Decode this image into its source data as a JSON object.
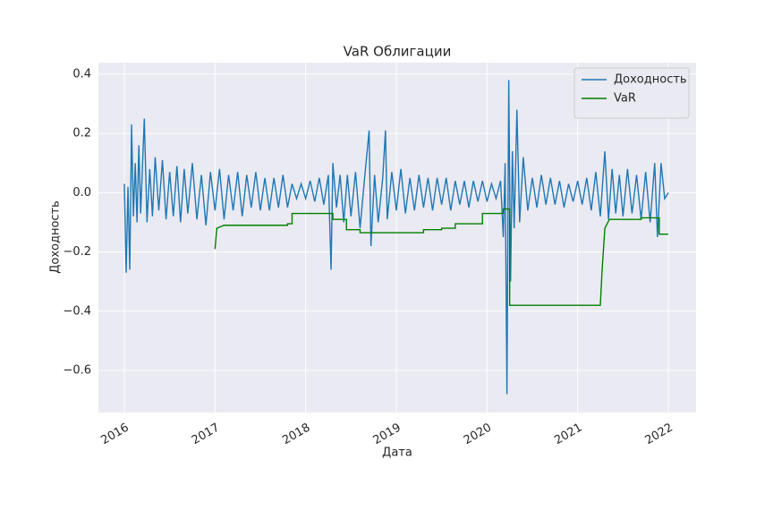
{
  "chart_data": {
    "type": "line",
    "title": "VaR Облигации",
    "xlabel": "Дата",
    "ylabel": "Доходность",
    "xlim": [
      2015.714,
      2022.306
    ],
    "xticks": [
      2016,
      2017,
      2018,
      2019,
      2020,
      2021,
      2022
    ],
    "ylim": [
      -0.742,
      0.439
    ],
    "yticks": [
      {
        "value": -0.6,
        "label": "−0.6"
      },
      {
        "value": -0.4,
        "label": "−0.4"
      },
      {
        "value": -0.2,
        "label": "−0.2"
      },
      {
        "value": 0,
        "label": "0.0"
      },
      {
        "value": 0.2,
        "label": "0.2"
      },
      {
        "value": 0.4,
        "label": "0.4"
      }
    ],
    "grid": true,
    "legend": "upper right",
    "series": [
      {
        "name": "Доходность",
        "color": "#1f77b4",
        "x": [
          2016.0,
          2016.02,
          2016.04,
          2016.06,
          2016.08,
          2016.1,
          2016.12,
          2016.14,
          2016.16,
          2016.18,
          2016.22,
          2016.25,
          2016.28,
          2016.31,
          2016.34,
          2016.38,
          2016.42,
          2016.46,
          2016.5,
          2016.54,
          2016.58,
          2016.62,
          2016.66,
          2016.7,
          2016.75,
          2016.8,
          2016.85,
          2016.9,
          2016.95,
          2017.0,
          2017.05,
          2017.1,
          2017.15,
          2017.2,
          2017.25,
          2017.3,
          2017.35,
          2017.4,
          2017.45,
          2017.5,
          2017.55,
          2017.6,
          2017.65,
          2017.7,
          2017.75,
          2017.8,
          2017.85,
          2017.9,
          2017.95,
          2018.0,
          2018.05,
          2018.1,
          2018.15,
          2018.2,
          2018.25,
          2018.28,
          2018.3,
          2018.34,
          2018.38,
          2018.42,
          2018.46,
          2018.5,
          2018.55,
          2018.6,
          2018.65,
          2018.7,
          2018.72,
          2018.76,
          2018.8,
          2018.85,
          2018.88,
          2018.9,
          2018.95,
          2019.0,
          2019.05,
          2019.1,
          2019.15,
          2019.2,
          2019.25,
          2019.3,
          2019.35,
          2019.4,
          2019.45,
          2019.5,
          2019.55,
          2019.6,
          2019.65,
          2019.7,
          2019.75,
          2019.8,
          2019.85,
          2019.9,
          2019.95,
          2020.0,
          2020.05,
          2020.1,
          2020.15,
          2020.18,
          2020.2,
          2020.22,
          2020.24,
          2020.26,
          2020.28,
          2020.3,
          2020.33,
          2020.36,
          2020.4,
          2020.45,
          2020.5,
          2020.55,
          2020.6,
          2020.65,
          2020.7,
          2020.75,
          2020.8,
          2020.85,
          2020.9,
          2020.95,
          2021.0,
          2021.05,
          2021.1,
          2021.15,
          2021.2,
          2021.25,
          2021.3,
          2021.34,
          2021.38,
          2021.42,
          2021.46,
          2021.5,
          2021.55,
          2021.6,
          2021.65,
          2021.7,
          2021.75,
          2021.8,
          2021.85,
          2021.88,
          2021.92,
          2021.96,
          2022.0
        ],
        "values": [
          0.03,
          -0.27,
          0.02,
          -0.26,
          0.23,
          -0.08,
          0.1,
          -0.1,
          0.16,
          -0.07,
          0.25,
          -0.1,
          0.08,
          -0.08,
          0.12,
          -0.06,
          0.11,
          -0.09,
          0.07,
          -0.08,
          0.09,
          -0.1,
          0.08,
          -0.07,
          0.1,
          -0.09,
          0.06,
          -0.11,
          0.07,
          -0.06,
          0.08,
          -0.09,
          0.06,
          -0.06,
          0.07,
          -0.08,
          0.06,
          -0.05,
          0.07,
          -0.06,
          0.05,
          -0.06,
          0.05,
          -0.05,
          0.06,
          -0.05,
          0.03,
          -0.02,
          0.03,
          -0.02,
          0.04,
          -0.03,
          0.05,
          -0.04,
          0.06,
          -0.26,
          0.1,
          -0.05,
          0.06,
          -0.1,
          0.06,
          -0.08,
          0.07,
          -0.12,
          0.05,
          0.21,
          -0.18,
          0.06,
          -0.1,
          0.05,
          0.21,
          -0.09,
          0.07,
          -0.06,
          0.08,
          -0.07,
          0.05,
          -0.06,
          0.06,
          -0.05,
          0.05,
          -0.06,
          0.05,
          -0.04,
          0.05,
          -0.06,
          0.04,
          -0.04,
          0.04,
          -0.05,
          0.04,
          -0.03,
          0.04,
          -0.03,
          0.03,
          -0.02,
          0.04,
          -0.15,
          0.1,
          -0.68,
          0.38,
          -0.3,
          0.14,
          -0.12,
          0.28,
          -0.1,
          0.12,
          -0.06,
          0.05,
          -0.05,
          0.06,
          -0.04,
          0.05,
          -0.04,
          0.04,
          -0.05,
          0.03,
          -0.03,
          0.04,
          -0.04,
          0.05,
          -0.06,
          0.07,
          -0.08,
          0.14,
          -0.09,
          0.08,
          -0.07,
          0.06,
          -0.08,
          0.08,
          -0.07,
          0.06,
          -0.09,
          0.07,
          -0.1,
          0.1,
          -0.15,
          0.1,
          -0.02,
          0.0
        ]
      },
      {
        "name": "VaR",
        "color": "#008000",
        "x": [
          2017.0,
          2017.02,
          2017.1,
          2017.8,
          2017.8,
          2017.85,
          2017.85,
          2018.3,
          2018.3,
          2018.45,
          2018.45,
          2018.6,
          2018.6,
          2019.3,
          2019.3,
          2019.5,
          2019.5,
          2019.65,
          2019.65,
          2019.95,
          2019.95,
          2020.18,
          2020.18,
          2020.25,
          2020.25,
          2021.25,
          2021.27,
          2021.3,
          2021.35,
          2021.55,
          2021.55,
          2021.7,
          2021.7,
          2021.9,
          2021.9,
          2022.0
        ],
        "values": [
          -0.19,
          -0.12,
          -0.11,
          -0.11,
          -0.105,
          -0.105,
          -0.07,
          -0.07,
          -0.09,
          -0.09,
          -0.125,
          -0.125,
          -0.135,
          -0.135,
          -0.125,
          -0.125,
          -0.12,
          -0.12,
          -0.105,
          -0.105,
          -0.07,
          -0.07,
          -0.055,
          -0.055,
          -0.38,
          -0.38,
          -0.26,
          -0.12,
          -0.09,
          -0.09,
          -0.09,
          -0.09,
          -0.085,
          -0.085,
          -0.14,
          -0.14
        ]
      }
    ]
  }
}
